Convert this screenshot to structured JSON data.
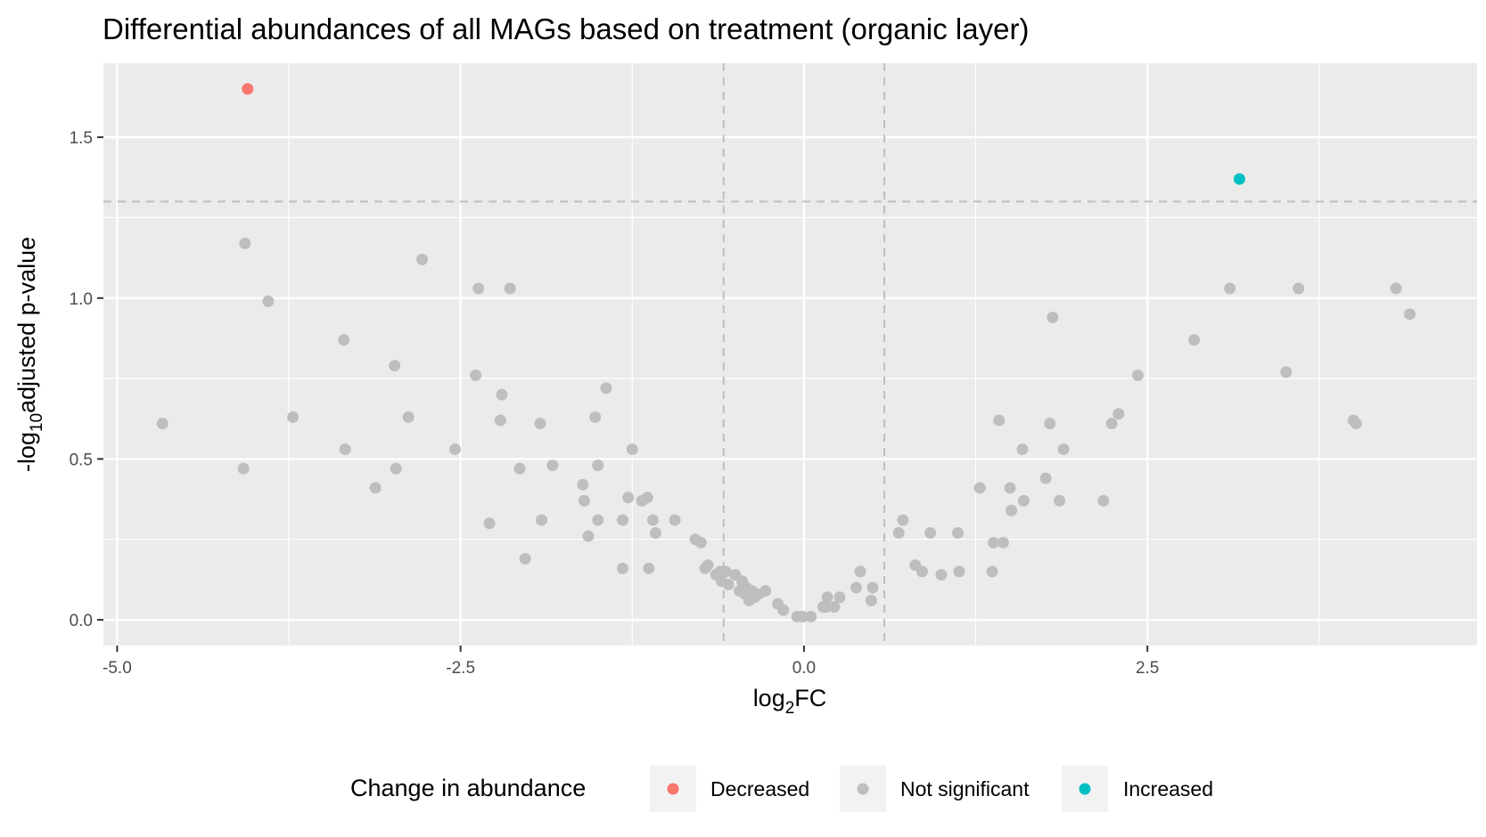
{
  "chart_data": {
    "type": "scatter",
    "title": "Differential abundances of all MAGs based on treatment (organic layer)",
    "xlabel": {
      "base": "log",
      "sub": "2",
      "rest": "FC"
    },
    "ylabel": {
      "base": "-log",
      "sub": "10",
      "rest": "adjusted p-value"
    },
    "xlim": [
      -5.1,
      4.9
    ],
    "ylim": [
      -0.08,
      1.73
    ],
    "x_ticks": [
      {
        "value": -5.0,
        "label": "-5.0"
      },
      {
        "value": -2.5,
        "label": "-2.5"
      },
      {
        "value": 0.0,
        "label": "0.0"
      },
      {
        "value": 2.5,
        "label": "2.5"
      }
    ],
    "y_ticks": [
      {
        "value": 0.0,
        "label": "0.0"
      },
      {
        "value": 0.5,
        "label": "0.5"
      },
      {
        "value": 1.0,
        "label": "1.0"
      },
      {
        "value": 1.5,
        "label": "1.5"
      }
    ],
    "thresholds": {
      "vertical": [
        -0.585,
        0.585
      ],
      "horizontal": [
        1.3
      ]
    },
    "grid": true,
    "legend_position": "bottom",
    "legend_title": "Change in abundance",
    "series": [
      {
        "name": "Decreased",
        "color": "#F8766D",
        "points": [
          [
            -4.05,
            1.65
          ]
        ]
      },
      {
        "name": "Not significant",
        "color": "#BEBEBE",
        "points": [
          [
            -4.67,
            0.61
          ],
          [
            -4.08,
            0.47
          ],
          [
            -4.07,
            1.17
          ],
          [
            -3.9,
            0.99
          ],
          [
            -3.72,
            0.63
          ],
          [
            -3.35,
            0.87
          ],
          [
            -3.34,
            0.53
          ],
          [
            -3.12,
            0.41
          ],
          [
            -2.98,
            0.79
          ],
          [
            -2.97,
            0.47
          ],
          [
            -2.88,
            0.63
          ],
          [
            -2.78,
            1.12
          ],
          [
            -2.54,
            0.53
          ],
          [
            -2.39,
            0.76
          ],
          [
            -2.37,
            1.03
          ],
          [
            -2.29,
            0.3
          ],
          [
            -2.2,
            0.7
          ],
          [
            -2.21,
            0.62
          ],
          [
            -2.14,
            1.03
          ],
          [
            -2.07,
            0.47
          ],
          [
            -2.03,
            0.19
          ],
          [
            -1.92,
            0.61
          ],
          [
            -1.91,
            0.31
          ],
          [
            -1.83,
            0.48
          ],
          [
            -1.61,
            0.42
          ],
          [
            -1.6,
            0.37
          ],
          [
            -1.57,
            0.26
          ],
          [
            -1.52,
            0.63
          ],
          [
            -1.5,
            0.48
          ],
          [
            -1.5,
            0.31
          ],
          [
            -1.44,
            0.72
          ],
          [
            -1.32,
            0.31
          ],
          [
            -1.32,
            0.16
          ],
          [
            -1.28,
            0.38
          ],
          [
            -1.25,
            0.53
          ],
          [
            -1.18,
            0.37
          ],
          [
            -1.14,
            0.38
          ],
          [
            -1.13,
            0.16
          ],
          [
            -1.1,
            0.31
          ],
          [
            -1.08,
            0.27
          ],
          [
            -0.94,
            0.31
          ],
          [
            -0.79,
            0.25
          ],
          [
            -0.75,
            0.24
          ],
          [
            -0.72,
            0.16
          ],
          [
            -0.7,
            0.17
          ],
          [
            -0.64,
            0.14
          ],
          [
            -0.61,
            0.15
          ],
          [
            -0.6,
            0.12
          ],
          [
            -0.57,
            0.15
          ],
          [
            -0.55,
            0.11
          ],
          [
            -0.5,
            0.14
          ],
          [
            -0.47,
            0.09
          ],
          [
            -0.45,
            0.12
          ],
          [
            -0.43,
            0.08
          ],
          [
            -0.42,
            0.1
          ],
          [
            -0.4,
            0.06
          ],
          [
            -0.38,
            0.09
          ],
          [
            -0.36,
            0.07
          ],
          [
            -0.33,
            0.08
          ],
          [
            -0.28,
            0.09
          ],
          [
            -0.19,
            0.05
          ],
          [
            -0.15,
            0.03
          ],
          [
            -0.05,
            0.01
          ],
          [
            -0.01,
            0.01
          ],
          [
            0.05,
            0.01
          ],
          [
            0.14,
            0.04
          ],
          [
            0.16,
            0.04
          ],
          [
            0.17,
            0.07
          ],
          [
            0.22,
            0.04
          ],
          [
            0.26,
            0.07
          ],
          [
            0.38,
            0.1
          ],
          [
            0.41,
            0.15
          ],
          [
            0.49,
            0.06
          ],
          [
            0.5,
            0.1
          ],
          [
            0.69,
            0.27
          ],
          [
            0.72,
            0.31
          ],
          [
            0.81,
            0.17
          ],
          [
            0.86,
            0.15
          ],
          [
            0.92,
            0.27
          ],
          [
            1.0,
            0.14
          ],
          [
            1.12,
            0.27
          ],
          [
            1.13,
            0.15
          ],
          [
            1.28,
            0.41
          ],
          [
            1.37,
            0.15
          ],
          [
            1.38,
            0.24
          ],
          [
            1.42,
            0.62
          ],
          [
            1.45,
            0.24
          ],
          [
            1.5,
            0.41
          ],
          [
            1.51,
            0.34
          ],
          [
            1.59,
            0.53
          ],
          [
            1.6,
            0.37
          ],
          [
            1.76,
            0.44
          ],
          [
            1.79,
            0.61
          ],
          [
            1.81,
            0.94
          ],
          [
            1.86,
            0.37
          ],
          [
            1.89,
            0.53
          ],
          [
            2.18,
            0.37
          ],
          [
            2.24,
            0.61
          ],
          [
            2.29,
            0.64
          ],
          [
            2.43,
            0.76
          ],
          [
            2.84,
            0.87
          ],
          [
            3.1,
            1.03
          ],
          [
            3.51,
            0.77
          ],
          [
            3.6,
            1.03
          ],
          [
            4.0,
            0.62
          ],
          [
            4.02,
            0.61
          ],
          [
            4.31,
            1.03
          ],
          [
            4.41,
            0.95
          ]
        ]
      },
      {
        "name": "Increased",
        "color": "#00BFC4",
        "points": [
          [
            3.17,
            1.37
          ]
        ]
      }
    ],
    "style": {
      "panel_background": "#EBEBEB",
      "major_grid_color": "#FFFFFF",
      "threshold_line_color": "#BEBEBE",
      "legend_key_background": "#F2F2F2"
    }
  }
}
